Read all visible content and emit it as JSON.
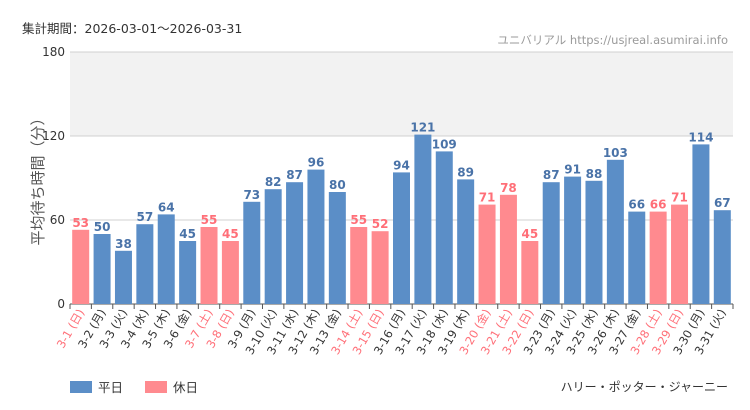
{
  "header": {
    "period_label": "集計期間：2026-03-01〜2026-03-31",
    "brand_label": "ユニバリアル  https://usjreal.asumirai.info"
  },
  "footer": {
    "attraction_name": "ハリー・ポッター・ジャーニー"
  },
  "colors": {
    "weekday": "#5b8ec7",
    "holiday": "#ff8a8f",
    "holiday_text": "#ff6f78",
    "weekday_text": "#4a73a8"
  },
  "chart_data": {
    "type": "bar",
    "ylabel": "平均待ち時間（分）",
    "ylim": [
      0,
      180
    ],
    "yticks": [
      0,
      60,
      120,
      180
    ],
    "categories": [
      "3-1 (日)",
      "3-2 (月)",
      "3-3 (火)",
      "3-4 (水)",
      "3-5 (木)",
      "3-6 (金)",
      "3-7 (土)",
      "3-8 (日)",
      "3-9 (月)",
      "3-10 (火)",
      "3-11 (水)",
      "3-12 (木)",
      "3-13 (金)",
      "3-14 (土)",
      "3-15 (日)",
      "3-16 (月)",
      "3-17 (火)",
      "3-18 (水)",
      "3-19 (木)",
      "3-20 (金)",
      "3-21 (土)",
      "3-22 (日)",
      "3-23 (月)",
      "3-24 (火)",
      "3-25 (水)",
      "3-26 (木)",
      "3-27 (金)",
      "3-28 (土)",
      "3-29 (日)",
      "3-30 (月)",
      "3-31 (火)"
    ],
    "values": [
      53,
      50,
      38,
      57,
      64,
      45,
      55,
      45,
      73,
      82,
      87,
      96,
      80,
      55,
      52,
      94,
      121,
      109,
      89,
      71,
      78,
      45,
      87,
      91,
      88,
      103,
      66,
      66,
      71,
      114,
      67
    ],
    "holiday": [
      true,
      false,
      false,
      false,
      false,
      false,
      true,
      true,
      false,
      false,
      false,
      false,
      false,
      true,
      true,
      false,
      false,
      false,
      false,
      true,
      true,
      true,
      false,
      false,
      false,
      false,
      false,
      true,
      true,
      false,
      false
    ],
    "legend": [
      {
        "name": "平日",
        "key": "weekday"
      },
      {
        "name": "休日",
        "key": "holiday"
      }
    ]
  }
}
